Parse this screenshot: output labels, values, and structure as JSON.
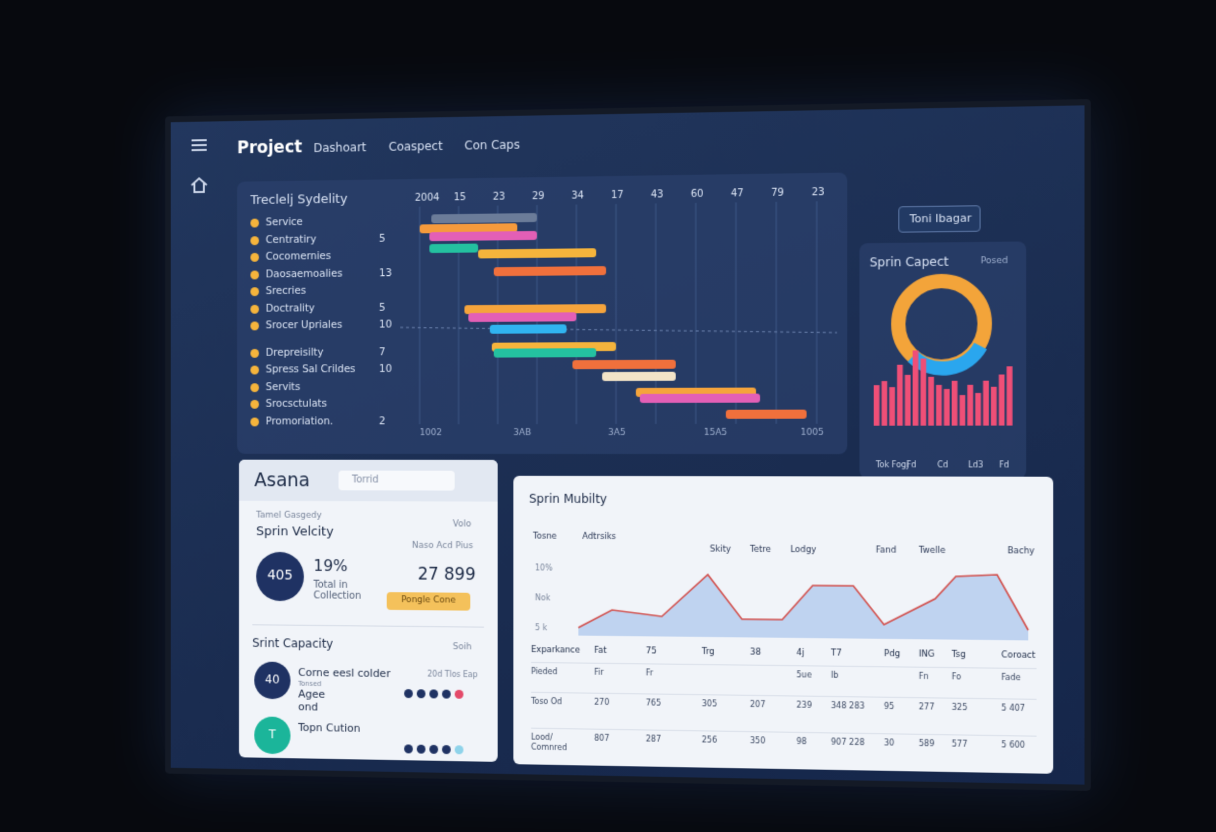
{
  "nav": {
    "title": "Project",
    "items": [
      "Dashoart",
      "Coaspect",
      "Con Caps"
    ],
    "search": "Toni Ibagar"
  },
  "gantt": {
    "title": "Treclelj Sydelity",
    "header": [
      "2004",
      "15",
      "23",
      "29",
      "34",
      "17",
      "43",
      "60",
      "47",
      "79",
      "23"
    ],
    "rows": [
      {
        "label": "Service",
        "count": null
      },
      {
        "label": "Centratiry",
        "count": "5"
      },
      {
        "label": "Cocomernies",
        "count": null
      },
      {
        "label": "Daosaemoalies",
        "count": "13"
      },
      {
        "label": "Srecries",
        "count": null
      },
      {
        "label": "Doctrality",
        "count": "5"
      },
      {
        "label": "Srocer Upriales",
        "count": "10"
      },
      {
        "label": "Drepreisilty",
        "count": "7"
      },
      {
        "label": "Spress Sal Crildes",
        "count": "10"
      },
      {
        "label": "Servits",
        "count": null
      },
      {
        "label": "Srocsctulats",
        "count": null
      },
      {
        "label": "Promoriation.",
        "count": "2"
      }
    ],
    "footer": [
      "1002",
      "3AB",
      "3A5",
      "15A5",
      "1005"
    ]
  },
  "capacity": {
    "title": "Sprin Capect",
    "action": "Posed",
    "labels": [
      "Tok Fogj",
      "Fd",
      "Cd",
      "Ld3",
      "Fd"
    ]
  },
  "asana": {
    "title": "Asana",
    "search": "Torrid",
    "velocity": {
      "caption": "Tamel Gasgedy",
      "title": "Sprin Velcity",
      "link": "Volo",
      "badge": "405",
      "percent": "19%",
      "sub": "Total in Collection",
      "note": "Naso Acd Pius",
      "total": "27 899",
      "button": "Pongle Cone"
    },
    "capacity": {
      "title": "Srint Capacity",
      "link": "Soih",
      "items": [
        {
          "badge": "40",
          "name": "Corne eesl colder",
          "sub": "Tonsed",
          "extra": "Agee ond",
          "tag": "20d Tlos Eap"
        },
        {
          "badge": "T",
          "name": "Topn Cution",
          "sub": null,
          "extra": null,
          "tag": null
        }
      ]
    }
  },
  "mobility": {
    "title": "Sprin Mubilty",
    "labels": [
      "Tosne",
      "Adtrsiks",
      "Skity",
      "Tetre",
      "Lodgy",
      "Fand",
      "Twelle",
      "Bachy"
    ],
    "ylabels": [
      "10%",
      "Nok",
      "5 k"
    ],
    "table": {
      "header": [
        "Exparkance",
        "Fat",
        "75",
        "Trg",
        "38",
        "4j",
        "T7",
        "Pdg",
        "ING",
        "Tsg",
        "Coroact"
      ],
      "rows": [
        [
          "Pieded",
          "Fir",
          "Fr",
          "",
          "",
          "5ue",
          "Ib",
          "",
          "Fn",
          "Fo",
          "Fade"
        ],
        [
          "Toso Od",
          "270",
          "765",
          "305",
          "207",
          "239",
          "348 283",
          "95",
          "277",
          "325",
          "5 407"
        ],
        [
          "Lood/ Comnred",
          "807",
          "287",
          "256",
          "350",
          "98",
          "907 228",
          "30",
          "589",
          "577",
          "5 600"
        ]
      ]
    }
  }
}
